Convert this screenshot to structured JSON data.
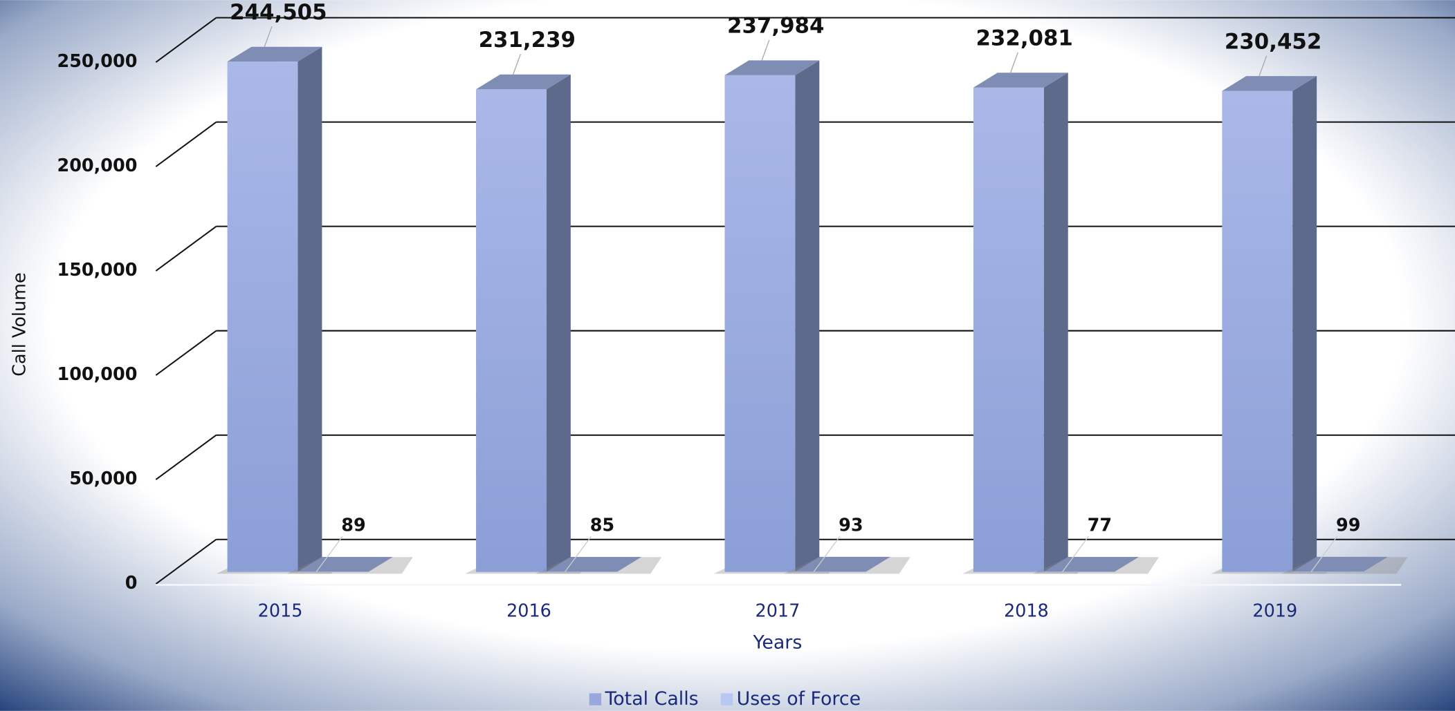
{
  "chart_data": {
    "type": "bar3d",
    "x_label": "Years",
    "y_label": "Call Volume",
    "categories": [
      "2015",
      "2016",
      "2017",
      "2018",
      "2019"
    ],
    "series": [
      {
        "name": "Total Calls",
        "color": "#98a8dc",
        "values": [
          244505,
          231239,
          237984,
          232081,
          230452
        ],
        "value_labels": [
          "244,505",
          "231,239",
          "237,984",
          "232,081",
          "230,452"
        ]
      },
      {
        "name": "Uses of Force",
        "color": "#b9c8f2",
        "values": [
          89,
          85,
          93,
          77,
          99
        ]
      }
    ],
    "ylim": [
      0,
      250000
    ],
    "yticks": [
      0,
      {
        "value": 50000,
        "label": "50,000"
      },
      {
        "value": 100000,
        "label": "100,000"
      },
      {
        "value": 150000,
        "label": "150,000"
      },
      {
        "value": 200000,
        "label": "200,000"
      },
      {
        "value": 250000,
        "label": "250,000"
      }
    ],
    "grid": true,
    "legend": "bottom"
  }
}
